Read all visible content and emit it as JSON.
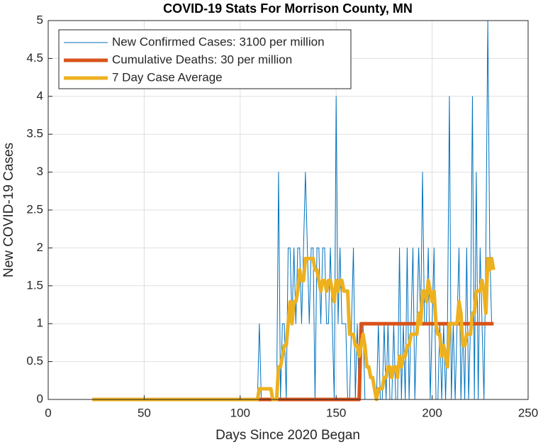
{
  "chart_data": {
    "type": "line",
    "title": "COVID-19 Stats For Morrison County, MN",
    "x_label": "Days Since 2020 Began",
    "y_label": "New COVID-19 Cases",
    "xlim": [
      0,
      250
    ],
    "xticks": [
      0,
      50,
      100,
      150,
      200,
      250
    ],
    "ylim": [
      0,
      5
    ],
    "yticks": [
      0,
      0.5,
      1,
      1.5,
      2,
      2.5,
      3,
      3.5,
      4,
      4.5,
      5
    ],
    "grid": true,
    "legend": "upper left",
    "x": [
      23,
      24,
      25,
      26,
      27,
      28,
      29,
      30,
      31,
      32,
      33,
      34,
      35,
      36,
      37,
      38,
      39,
      40,
      41,
      42,
      43,
      44,
      45,
      46,
      47,
      48,
      49,
      50,
      51,
      52,
      53,
      54,
      55,
      56,
      57,
      58,
      59,
      60,
      61,
      62,
      63,
      64,
      65,
      66,
      67,
      68,
      69,
      70,
      71,
      72,
      73,
      74,
      75,
      76,
      77,
      78,
      79,
      80,
      81,
      82,
      83,
      84,
      85,
      86,
      87,
      88,
      89,
      90,
      91,
      92,
      93,
      94,
      95,
      96,
      97,
      98,
      99,
      100,
      101,
      102,
      103,
      104,
      105,
      106,
      107,
      108,
      109,
      110,
      111,
      112,
      113,
      114,
      115,
      116,
      117,
      118,
      119,
      120,
      121,
      122,
      123,
      124,
      125,
      126,
      127,
      128,
      129,
      130,
      131,
      132,
      133,
      134,
      135,
      136,
      137,
      138,
      139,
      140,
      141,
      142,
      143,
      144,
      145,
      146,
      147,
      148,
      149,
      150,
      151,
      152,
      153,
      154,
      155,
      156,
      157,
      158,
      159,
      160,
      161,
      162,
      163,
      164,
      165,
      166,
      167,
      168,
      169,
      170,
      171,
      172,
      173,
      174,
      175,
      176,
      177,
      178,
      179,
      180,
      181,
      182,
      183,
      184,
      185,
      186,
      187,
      188,
      189,
      190,
      191,
      192,
      193,
      194,
      195,
      196,
      197,
      198,
      199,
      200,
      201,
      202,
      203,
      204,
      205,
      206,
      207,
      208,
      209,
      210,
      211,
      212,
      213,
      214,
      215,
      216,
      217,
      218,
      219,
      220,
      221,
      222,
      223,
      224,
      225,
      226,
      227,
      228,
      229,
      230,
      231,
      232
    ],
    "series": [
      {
        "name": "New Confirmed Cases: 3100 per million",
        "color": "#0072bd",
        "values": [
          0,
          0,
          0,
          0,
          0,
          0,
          0,
          0,
          0,
          0,
          0,
          0,
          0,
          0,
          0,
          0,
          0,
          0,
          0,
          0,
          0,
          0,
          0,
          0,
          0,
          0,
          0,
          0,
          0,
          0,
          0,
          0,
          0,
          0,
          0,
          0,
          0,
          0,
          0,
          0,
          0,
          0,
          0,
          0,
          0,
          0,
          0,
          0,
          0,
          0,
          0,
          0,
          0,
          0,
          0,
          0,
          0,
          0,
          0,
          0,
          0,
          0,
          0,
          0,
          0,
          0,
          0,
          0,
          0,
          0,
          0,
          0,
          0,
          0,
          0,
          0,
          0,
          0,
          0,
          0,
          0,
          0,
          0,
          0,
          0,
          0,
          0,
          1,
          0,
          0,
          0,
          0,
          0,
          0,
          0,
          0,
          0,
          3,
          0,
          1,
          1,
          0,
          2,
          2,
          1,
          2,
          1,
          2,
          2,
          1,
          2,
          3,
          2,
          1,
          2,
          2,
          0,
          2,
          2,
          1,
          2,
          2,
          1,
          1,
          2,
          1,
          0,
          4,
          1,
          2,
          1,
          1,
          1,
          0,
          0,
          1,
          2,
          0,
          1,
          0,
          1,
          1,
          0,
          0,
          0,
          0,
          0,
          0,
          0,
          1,
          0,
          0,
          1,
          0,
          1,
          0,
          0,
          1,
          0,
          0,
          2,
          0,
          1,
          0,
          2,
          0,
          1,
          2,
          0,
          1,
          2,
          1,
          3,
          1,
          1,
          2,
          0,
          1,
          2,
          0,
          0,
          1,
          0,
          1,
          0,
          1,
          4,
          0,
          1,
          0,
          1,
          2,
          0,
          1,
          0,
          2,
          0,
          1,
          4,
          0,
          3,
          0,
          2,
          1,
          0,
          2,
          5,
          2,
          1,
          1
        ]
      },
      {
        "name": "Cumulative Deaths: 30 per million",
        "color": "#d95319",
        "values": [
          0,
          0,
          0,
          0,
          0,
          0,
          0,
          0,
          0,
          0,
          0,
          0,
          0,
          0,
          0,
          0,
          0,
          0,
          0,
          0,
          0,
          0,
          0,
          0,
          0,
          0,
          0,
          0,
          0,
          0,
          0,
          0,
          0,
          0,
          0,
          0,
          0,
          0,
          0,
          0,
          0,
          0,
          0,
          0,
          0,
          0,
          0,
          0,
          0,
          0,
          0,
          0,
          0,
          0,
          0,
          0,
          0,
          0,
          0,
          0,
          0,
          0,
          0,
          0,
          0,
          0,
          0,
          0,
          0,
          0,
          0,
          0,
          0,
          0,
          0,
          0,
          0,
          0,
          0,
          0,
          0,
          0,
          0,
          0,
          0,
          0,
          0,
          0,
          0,
          0,
          0,
          0,
          0,
          0,
          0,
          0,
          0,
          0,
          0,
          0,
          0,
          0,
          0,
          0,
          0,
          0,
          0,
          0,
          0,
          0,
          0,
          0,
          0,
          0,
          0,
          0,
          0,
          0,
          0,
          0,
          0,
          0,
          0,
          0,
          0,
          0,
          0,
          0,
          0,
          0,
          0,
          0,
          0,
          0,
          0,
          0,
          0,
          0,
          0,
          0,
          1,
          1,
          1,
          1,
          1,
          1,
          1,
          1,
          1,
          1,
          1,
          1,
          1,
          1,
          1,
          1,
          1,
          1,
          1,
          1,
          1,
          1,
          1,
          1,
          1,
          1,
          1,
          1,
          1,
          1,
          1,
          1,
          1,
          1,
          1,
          1,
          1,
          1,
          1,
          1,
          1,
          1,
          1,
          1,
          1,
          1,
          1,
          1,
          1,
          1,
          1,
          1,
          1,
          1,
          1,
          1,
          1,
          1,
          1,
          1,
          1,
          1,
          1,
          1,
          1,
          1,
          1,
          1,
          1,
          1
        ]
      },
      {
        "name": "7 Day Case Average",
        "color": "#edb120",
        "values": [
          0,
          0,
          0,
          0,
          0,
          0,
          0,
          0,
          0,
          0,
          0,
          0,
          0,
          0,
          0,
          0,
          0,
          0,
          0,
          0,
          0,
          0,
          0,
          0,
          0,
          0,
          0,
          0,
          0,
          0,
          0,
          0,
          0,
          0,
          0,
          0,
          0,
          0,
          0,
          0,
          0,
          0,
          0,
          0,
          0,
          0,
          0,
          0,
          0,
          0,
          0,
          0,
          0,
          0,
          0,
          0,
          0,
          0,
          0,
          0,
          0,
          0,
          0,
          0,
          0,
          0,
          0,
          0,
          0,
          0,
          0,
          0,
          0,
          0,
          0,
          0,
          0,
          0,
          0,
          0,
          0,
          0,
          0,
          0,
          0,
          0,
          0,
          0.14,
          0.14,
          0.14,
          0.14,
          0.14,
          0.14,
          0.14,
          0,
          0,
          0,
          0.43,
          0.43,
          0.57,
          0.71,
          0.71,
          1,
          1.29,
          1,
          1.29,
          1.29,
          1.43,
          1.71,
          1.57,
          1.57,
          1.86,
          1.86,
          1.86,
          1.86,
          1.86,
          1.71,
          1.71,
          1.57,
          1.43,
          1.57,
          1.57,
          1.43,
          1.57,
          1.57,
          1.43,
          1.29,
          1.57,
          1.43,
          1.57,
          1.57,
          1.43,
          1.43,
          1.43,
          0.86,
          0.86,
          0.86,
          0.71,
          0.71,
          0.57,
          0.71,
          0.86,
          0.71,
          0.43,
          0.43,
          0.29,
          0.29,
          0.14,
          0,
          0.14,
          0.14,
          0.14,
          0.29,
          0.29,
          0.43,
          0.43,
          0.29,
          0.43,
          0.43,
          0.29,
          0.57,
          0.43,
          0.57,
          0.57,
          0.71,
          0.71,
          0.86,
          0.86,
          0.86,
          0.86,
          1.14,
          1,
          1.43,
          1.43,
          1.29,
          1.57,
          1.43,
          1.29,
          1.43,
          1,
          0.86,
          0.86,
          0.57,
          0.71,
          0.57,
          0.43,
          1,
          1,
          1,
          1,
          1,
          1.29,
          1.14,
          0.71,
          0.71,
          0.86,
          0.86,
          0.86,
          1.14,
          1.14,
          1.43,
          1.43,
          1.43,
          1.57,
          1.43,
          1.14,
          1.86,
          1.71,
          1.86,
          1.71
        ]
      }
    ]
  }
}
